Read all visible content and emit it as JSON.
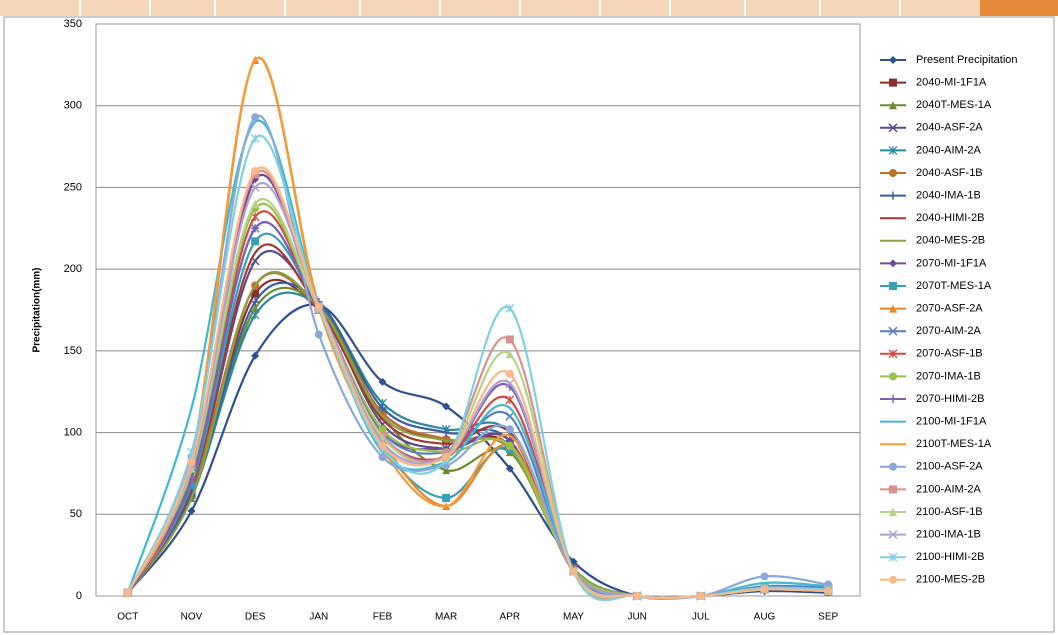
{
  "chart_data": {
    "type": "line",
    "y_label": "Precipitation(mm)",
    "smooth": true,
    "grid": true,
    "categories": [
      "OCT",
      "NOV",
      "DES",
      "JAN",
      "FEB",
      "MAR",
      "APR",
      "MAY",
      "JUN",
      "JUL",
      "AUG",
      "SEP"
    ],
    "ylim": [
      0,
      350
    ],
    "yticks": [
      0,
      50,
      100,
      150,
      200,
      250,
      300,
      350
    ],
    "series": [
      {
        "name": "Present Precipitation",
        "color": "#2f4f8f",
        "marker": "diamond",
        "values": [
          2,
          52,
          147,
          178,
          131,
          116,
          78,
          21,
          0,
          0,
          3,
          2
        ]
      },
      {
        "name": "2040-MI-1F1A",
        "color": "#8b2d2a",
        "marker": "square",
        "values": [
          2,
          62,
          185,
          175,
          112,
          95,
          92,
          17,
          0,
          0,
          4,
          3
        ]
      },
      {
        "name": "2040T-MES-1A",
        "color": "#6f8a2a",
        "marker": "triangle",
        "values": [
          2,
          60,
          176,
          178,
          110,
          77,
          88,
          17,
          0,
          0,
          4,
          3
        ]
      },
      {
        "name": "2040-ASF-2A",
        "color": "#5e4a8c",
        "marker": "x",
        "values": [
          2,
          65,
          205,
          178,
          105,
          90,
          95,
          16,
          0,
          0,
          5,
          3
        ]
      },
      {
        "name": "2040-AIM-2A",
        "color": "#2b8aa0",
        "marker": "star",
        "values": [
          2,
          62,
          172,
          178,
          118,
          102,
          100,
          17,
          0,
          0,
          5,
          4
        ]
      },
      {
        "name": "2040-ASF-1B",
        "color": "#c0702a",
        "marker": "circle",
        "values": [
          2,
          65,
          190,
          176,
          112,
          96,
          90,
          17,
          0,
          0,
          4,
          3
        ]
      },
      {
        "name": "2040-IMA-1B",
        "color": "#3c5fa0",
        "marker": "plus",
        "values": [
          2,
          62,
          180,
          180,
          115,
          100,
          95,
          17,
          0,
          0,
          4,
          3
        ]
      },
      {
        "name": "2040-HIMI-2B",
        "color": "#a03a36",
        "marker": "none",
        "values": [
          2,
          66,
          210,
          176,
          108,
          93,
          100,
          16,
          0,
          0,
          4,
          3
        ]
      },
      {
        "name": "2040-MES-2B",
        "color": "#8aa048",
        "marker": "none",
        "values": [
          2,
          60,
          190,
          177,
          110,
          95,
          90,
          17,
          0,
          0,
          4,
          3
        ]
      },
      {
        "name": "2070-MI-1F1A",
        "color": "#6e4a9a",
        "marker": "diamond",
        "values": [
          2,
          70,
          255,
          175,
          100,
          90,
          95,
          16,
          0,
          0,
          4,
          3
        ]
      },
      {
        "name": "2070T-MES-1A",
        "color": "#35a0b8",
        "marker": "square",
        "values": [
          2,
          68,
          217,
          176,
          92,
          60,
          90,
          16,
          0,
          0,
          5,
          4
        ]
      },
      {
        "name": "2070-ASF-2A",
        "color": "#e8862a",
        "marker": "triangle",
        "values": [
          2,
          80,
          328,
          178,
          95,
          55,
          92,
          15,
          0,
          0,
          4,
          3
        ]
      },
      {
        "name": "2070-AIM-2A",
        "color": "#5a7fc0",
        "marker": "x",
        "values": [
          2,
          70,
          225,
          175,
          100,
          88,
          110,
          16,
          0,
          0,
          6,
          5
        ]
      },
      {
        "name": "2070-ASF-1B",
        "color": "#d04a44",
        "marker": "star",
        "values": [
          2,
          72,
          232,
          175,
          98,
          85,
          120,
          16,
          0,
          0,
          4,
          3
        ]
      },
      {
        "name": "2070-IMA-1B",
        "color": "#9cc04c",
        "marker": "circle",
        "values": [
          2,
          75,
          237,
          175,
          102,
          88,
          92,
          16,
          0,
          0,
          5,
          3
        ]
      },
      {
        "name": "2070-HIMI-2B",
        "color": "#8060b0",
        "marker": "plus",
        "values": [
          2,
          72,
          225,
          175,
          98,
          85,
          128,
          16,
          0,
          0,
          4,
          3
        ]
      },
      {
        "name": "2100-MI-1F1A",
        "color": "#40b8d0",
        "marker": "none",
        "values": [
          2,
          115,
          290,
          178,
          88,
          82,
          115,
          16,
          0,
          0,
          8,
          6
        ]
      },
      {
        "name": "2100T-MES-1A",
        "color": "#f59a3a",
        "marker": "none",
        "values": [
          2,
          85,
          328,
          176,
          90,
          55,
          98,
          15,
          0,
          0,
          4,
          3
        ]
      },
      {
        "name": "2100-ASF-2A",
        "color": "#8aa8d8",
        "marker": "circle",
        "values": [
          2,
          85,
          293,
          160,
          85,
          80,
          102,
          15,
          0,
          0,
          12,
          7
        ]
      },
      {
        "name": "2100-AIM-2A",
        "color": "#d89090",
        "marker": "square",
        "values": [
          2,
          80,
          258,
          175,
          98,
          87,
          157,
          15,
          0,
          0,
          4,
          4
        ]
      },
      {
        "name": "2100-ASF-1B",
        "color": "#b8d088",
        "marker": "triangle",
        "values": [
          2,
          78,
          240,
          176,
          97,
          85,
          148,
          15,
          0,
          0,
          4,
          3
        ]
      },
      {
        "name": "2100-IMA-1B",
        "color": "#b0a0d0",
        "marker": "x",
        "values": [
          2,
          80,
          250,
          178,
          94,
          85,
          130,
          15,
          0,
          0,
          4,
          3
        ]
      },
      {
        "name": "2100-HIMI-2B",
        "color": "#80d0e0",
        "marker": "star",
        "values": [
          2,
          88,
          280,
          176,
          90,
          83,
          176,
          15,
          0,
          0,
          5,
          4
        ]
      },
      {
        "name": "2100-MES-2B",
        "color": "#f8b888",
        "marker": "circle",
        "values": [
          2,
          82,
          260,
          177,
          92,
          85,
          136,
          15,
          0,
          0,
          4,
          3
        ]
      }
    ]
  }
}
